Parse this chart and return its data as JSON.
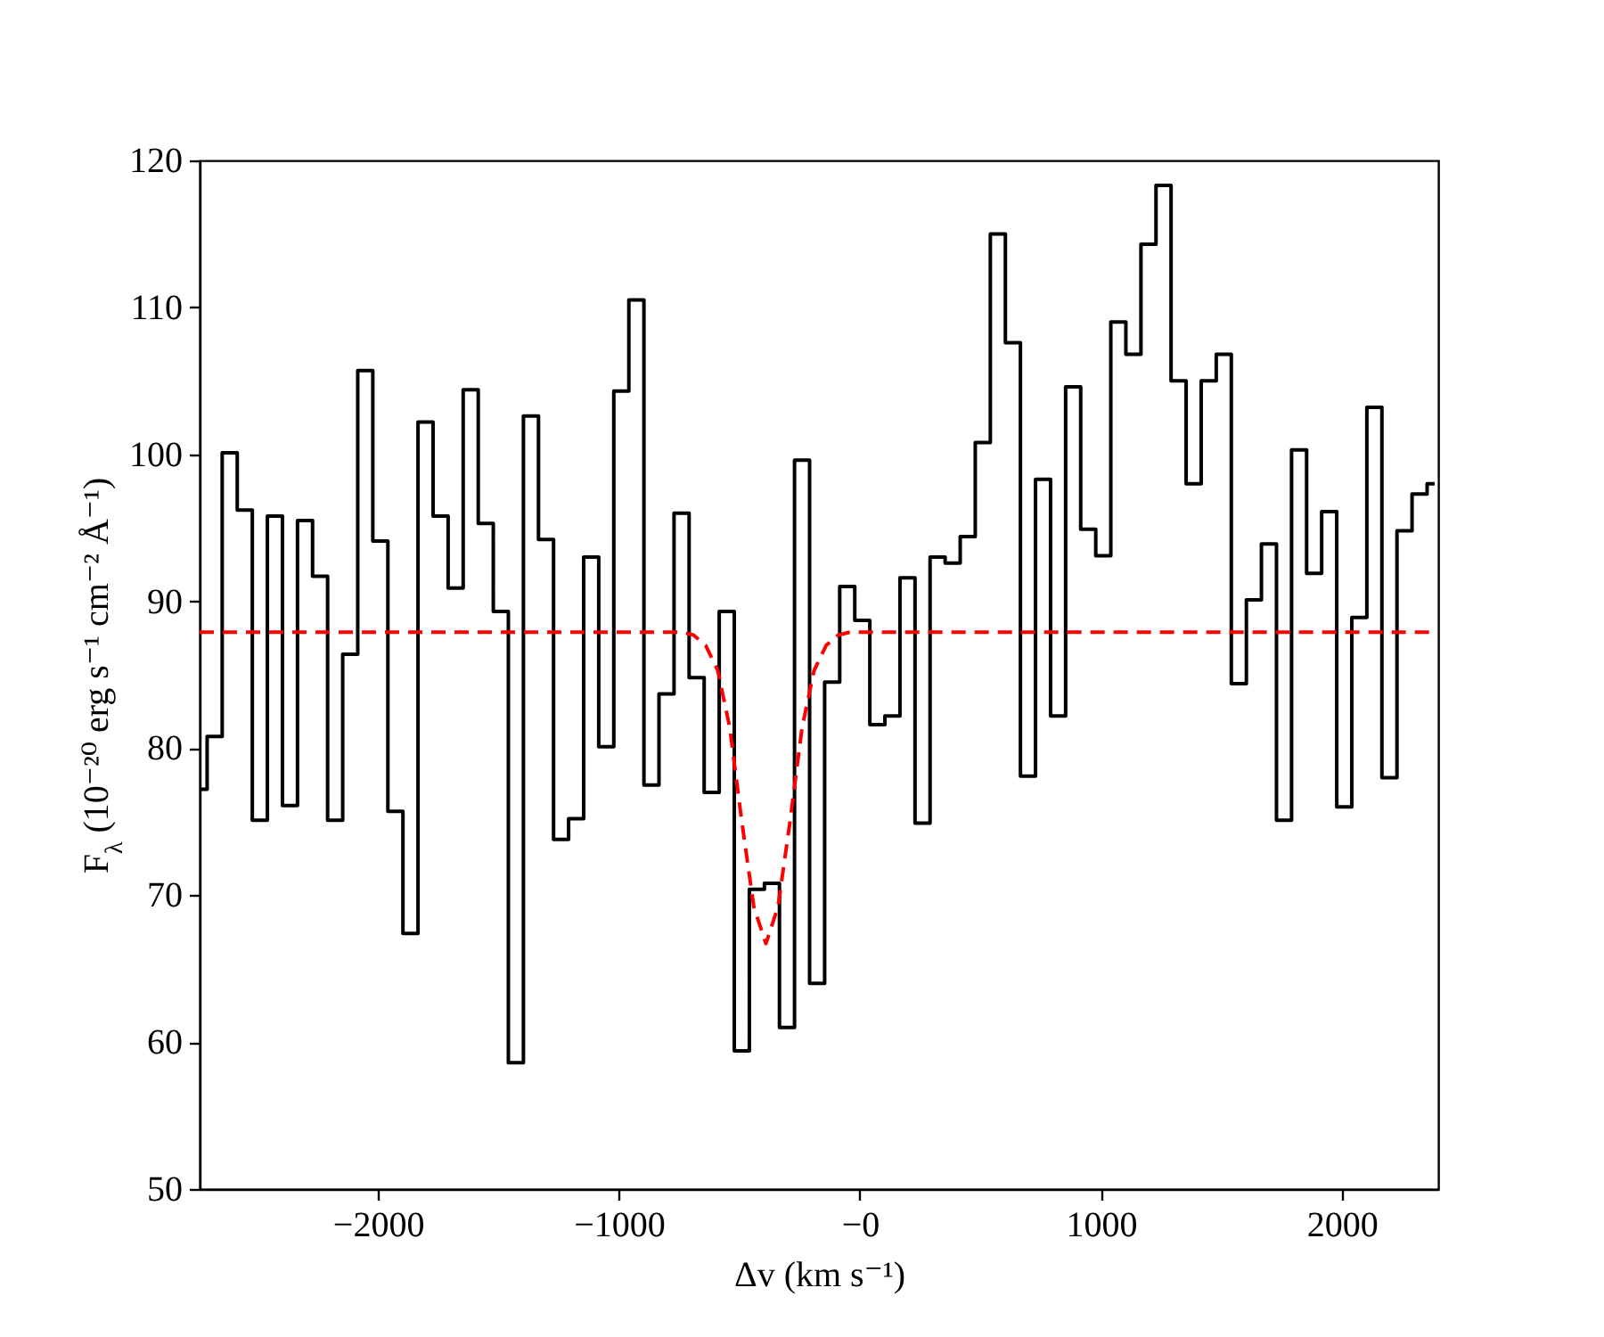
{
  "chart_data": {
    "type": "step",
    "xlabel": "Δv (km s⁻¹)",
    "ylabel": "F$_{λ}$ (10⁻²⁰ erg s⁻¹ cm⁻² Å⁻¹)",
    "x": [
      -2740,
      -2677.5,
      -2615,
      -2552.5,
      -2490,
      -2427.5,
      -2365,
      -2302.5,
      -2240,
      -2177.5,
      -2115,
      -2052.5,
      -1990,
      -1927.5,
      -1865,
      -1802.5,
      -1740,
      -1677.5,
      -1615,
      -1552.5,
      -1490,
      -1427.5,
      -1365,
      -1302.5,
      -1240,
      -1177.5,
      -1115,
      -1052.5,
      -990,
      -927.5,
      -865,
      -802.5,
      -740,
      -677.5,
      -615,
      -552.5,
      -490,
      -427.5,
      -365,
      -302.5,
      -240,
      -177.5,
      -115,
      -52.5,
      10,
      72.5,
      135,
      197.5,
      260,
      322.5,
      385,
      447.5,
      510,
      572.5,
      635,
      697.5,
      760,
      822.5,
      885,
      947.5,
      1010,
      1072.5,
      1135,
      1197.5,
      1260,
      1322.5,
      1385,
      1447.5,
      1510,
      1572.5,
      1635,
      1697.5,
      1760,
      1822.5,
      1885,
      1947.5,
      2010,
      2072.5,
      2135,
      2197.5,
      2260,
      2322.5,
      2385
    ],
    "series": [
      {
        "type": "step",
        "color": "#000000",
        "line_style": "solid",
        "values": [
          77.2,
          80.8,
          100.1,
          96.2,
          75.1,
          95.8,
          76.1,
          95.5,
          91.7,
          75.1,
          86.4,
          105.7,
          94.1,
          75.7,
          67.4,
          102.2,
          95.8,
          90.9,
          104.4,
          95.3,
          89.3,
          58.6,
          102.6,
          94.2,
          73.8,
          75.2,
          93.0,
          80.1,
          104.3,
          110.5,
          77.5,
          83.7,
          96.0,
          84.8,
          77.0,
          89.3,
          59.4,
          70.4,
          70.8,
          61.0,
          99.6,
          64.0,
          84.5,
          91.0,
          88.7,
          81.6,
          82.2,
          91.6,
          74.9,
          93.0,
          92.6,
          94.4,
          100.8,
          115.0,
          107.6,
          78.1,
          98.3,
          82.2,
          104.6,
          94.9,
          93.1,
          109.0,
          106.8,
          114.3,
          118.3,
          105.0,
          98.0,
          105.0,
          106.8,
          84.4,
          90.1,
          93.9,
          75.1,
          100.3,
          91.9,
          96.1,
          76.0,
          88.9,
          103.2,
          78.0,
          94.8,
          97.3,
          98.0
        ]
      },
      {
        "type": "line",
        "color": "#ff0000",
        "line_style": "dashed",
        "x": [
          -2740,
          -740,
          -690,
          -640,
          -590,
          -540,
          -490,
          -440,
          -390,
          -340,
          -290,
          -240,
          -190,
          -140,
          -90,
          -40,
          2400
        ],
        "values": [
          87.9,
          87.9,
          87.7,
          87.0,
          85.3,
          81.4,
          75.0,
          69.2,
          66.7,
          69.2,
          75.0,
          81.4,
          85.3,
          87.0,
          87.7,
          87.9,
          87.9
        ]
      }
    ],
    "xlim": [
      -2740,
      2400
    ],
    "xticks": [
      -2000,
      -1000,
      {
        "value": 0,
        "label": "−0"
      },
      1000,
      2000
    ],
    "ylim": [
      50,
      120
    ],
    "yticks": [
      50,
      60,
      70,
      80,
      90,
      100,
      110,
      120
    ],
    "grid": false,
    "marker": "none"
  }
}
